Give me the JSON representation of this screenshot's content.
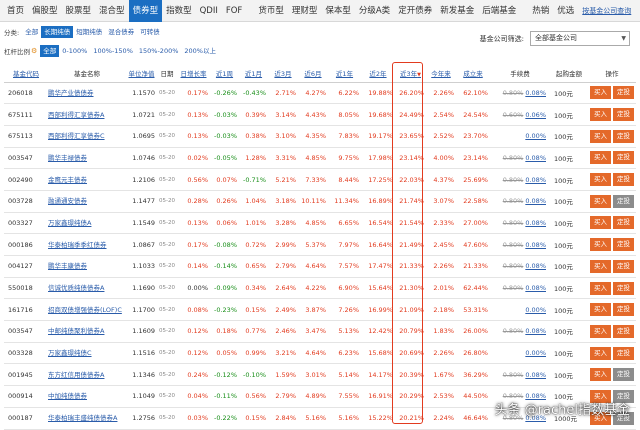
{
  "nav": {
    "items": [
      "首页",
      "偏股型",
      "股票型",
      "混合型",
      "债券型",
      "指数型",
      "QDII",
      "FOF",
      "货币型",
      "理财型",
      "保本型",
      "分级A类",
      "定开债券",
      "新发基金",
      "后端基金",
      "热销",
      "优选"
    ],
    "active_index": 4,
    "link": "按基金公司查询"
  },
  "category": {
    "label": "分类:",
    "options": [
      "全部",
      "长期纯债",
      "短期纯债",
      "混合债券",
      "可转债"
    ],
    "active_index": 1
  },
  "leverage": {
    "label": "杠杆比例",
    "options": [
      "全部",
      "0-100%",
      "100%-150%",
      "150%-200%",
      "200%以上"
    ],
    "active_index": 0
  },
  "company_filter": {
    "label": "基金公司筛选:",
    "selected": "全部基金公司"
  },
  "table": {
    "headers": [
      "基金代码",
      "基金名称",
      "单位净值",
      "日期",
      "日增长率",
      "近1周",
      "近1月",
      "近3月",
      "近6月",
      "近1年",
      "近2年",
      "近3年",
      "今年来",
      "成立来",
      "手续费",
      "起购金额",
      "操作"
    ],
    "buy_label": "买入",
    "plan_label": "定投",
    "rows": [
      {
        "code": "206018",
        "name": "鹏华产业债债券",
        "nav": "1.1570",
        "date": "05-20",
        "d1": "0.17%",
        "w1": "-0.26%",
        "m1": "-0.43%",
        "m3": "2.71%",
        "m6": "4.27%",
        "y1": "6.22%",
        "y2": "19.88%",
        "y3": "26.20%",
        "ytd": "2.26%",
        "since": "62.10%",
        "fee_old": "0.80%",
        "fee_new": "0.08%",
        "min": "100元",
        "plan_gray": false
      },
      {
        "code": "675111",
        "name": "西部利得汇享债券A",
        "nav": "1.0721",
        "date": "05-20",
        "d1": "0.13%",
        "w1": "-0.03%",
        "m1": "0.39%",
        "m3": "3.14%",
        "m6": "4.43%",
        "y1": "8.05%",
        "y2": "19.68%",
        "y3": "24.49%",
        "ytd": "2.54%",
        "since": "24.54%",
        "fee_old": "0.60%",
        "fee_new": "0.06%",
        "min": "100元",
        "plan_gray": false
      },
      {
        "code": "675113",
        "name": "西部利得汇享债券C",
        "nav": "1.0695",
        "date": "05-20",
        "d1": "0.13%",
        "w1": "-0.03%",
        "m1": "0.38%",
        "m3": "3.10%",
        "m6": "4.35%",
        "y1": "7.83%",
        "y2": "19.17%",
        "y3": "23.65%",
        "ytd": "2.52%",
        "since": "23.70%",
        "fee_old": "",
        "fee_new": "0.00%",
        "min": "100元",
        "plan_gray": false
      },
      {
        "code": "003547",
        "name": "鹏华丰禄债券",
        "nav": "1.0746",
        "date": "05-20",
        "d1": "0.02%",
        "w1": "-0.05%",
        "m1": "1.28%",
        "m3": "3.31%",
        "m6": "4.85%",
        "y1": "9.75%",
        "y2": "17.98%",
        "y3": "23.14%",
        "ytd": "4.00%",
        "since": "23.14%",
        "fee_old": "0.80%",
        "fee_new": "0.08%",
        "min": "100元",
        "plan_gray": false
      },
      {
        "code": "002490",
        "name": "金鹰元丰债券",
        "nav": "1.2106",
        "date": "05-20",
        "d1": "0.56%",
        "w1": "0.07%",
        "m1": "-0.71%",
        "m3": "5.21%",
        "m6": "7.33%",
        "y1": "8.44%",
        "y2": "17.25%",
        "y3": "22.03%",
        "ytd": "4.37%",
        "since": "25.69%",
        "fee_old": "0.80%",
        "fee_new": "0.08%",
        "min": "100元",
        "plan_gray": false
      },
      {
        "code": "003728",
        "name": "融通通安债券",
        "nav": "1.1477",
        "date": "05-20",
        "d1": "0.28%",
        "w1": "0.26%",
        "m1": "1.04%",
        "m3": "3.18%",
        "m6": "10.11%",
        "y1": "11.34%",
        "y2": "16.89%",
        "y3": "21.74%",
        "ytd": "3.07%",
        "since": "22.58%",
        "fee_old": "0.80%",
        "fee_new": "0.08%",
        "min": "100元",
        "plan_gray": true
      },
      {
        "code": "003327",
        "name": "万家鑫璟纯债A",
        "nav": "1.1549",
        "date": "05-20",
        "d1": "0.13%",
        "w1": "0.06%",
        "m1": "1.01%",
        "m3": "3.28%",
        "m6": "4.85%",
        "y1": "6.65%",
        "y2": "16.54%",
        "y3": "21.54%",
        "ytd": "2.33%",
        "since": "27.00%",
        "fee_old": "0.80%",
        "fee_new": "0.08%",
        "min": "100元",
        "plan_gray": false
      },
      {
        "code": "000186",
        "name": "华泰柏瑞季季红债券",
        "nav": "1.0867",
        "date": "05-20",
        "d1": "0.17%",
        "w1": "-0.08%",
        "m1": "0.72%",
        "m3": "2.99%",
        "m6": "5.37%",
        "y1": "7.97%",
        "y2": "16.64%",
        "y3": "21.49%",
        "ytd": "2.45%",
        "since": "47.60%",
        "fee_old": "0.80%",
        "fee_new": "0.08%",
        "min": "100元",
        "plan_gray": false
      },
      {
        "code": "004127",
        "name": "鹏华丰康债券",
        "nav": "1.1033",
        "date": "05-20",
        "d1": "0.14%",
        "w1": "-0.14%",
        "m1": "0.65%",
        "m3": "2.79%",
        "m6": "4.64%",
        "y1": "7.57%",
        "y2": "17.47%",
        "y3": "21.33%",
        "ytd": "2.26%",
        "since": "21.33%",
        "fee_old": "0.80%",
        "fee_new": "0.08%",
        "min": "100元",
        "plan_gray": false
      },
      {
        "code": "550018",
        "name": "信诚优质纯债债券A",
        "nav": "1.1690",
        "date": "05-20",
        "d1": "0.00%",
        "w1": "-0.09%",
        "m1": "0.34%",
        "m3": "2.64%",
        "m6": "4.22%",
        "y1": "6.90%",
        "y2": "15.64%",
        "y3": "21.30%",
        "ytd": "2.01%",
        "since": "62.44%",
        "fee_old": "0.80%",
        "fee_new": "0.08%",
        "min": "100元",
        "plan_gray": false
      },
      {
        "code": "161716",
        "name": "招商双债增强债券(LOF)C",
        "nav": "1.1700",
        "date": "05-20",
        "d1": "0.08%",
        "w1": "-0.23%",
        "m1": "0.15%",
        "m3": "2.49%",
        "m6": "3.87%",
        "y1": "7.26%",
        "y2": "16.99%",
        "y3": "21.09%",
        "ytd": "2.18%",
        "since": "53.31%",
        "fee_old": "",
        "fee_new": "0.00%",
        "min": "100元",
        "plan_gray": false
      },
      {
        "code": "003547",
        "name": "中邮纯债聚利债券A",
        "nav": "1.1609",
        "date": "05-20",
        "d1": "0.12%",
        "w1": "0.18%",
        "m1": "0.77%",
        "m3": "2.46%",
        "m6": "3.47%",
        "y1": "5.13%",
        "y2": "12.42%",
        "y3": "20.79%",
        "ytd": "1.83%",
        "since": "26.00%",
        "fee_old": "0.80%",
        "fee_new": "0.08%",
        "min": "100元",
        "plan_gray": false
      },
      {
        "code": "003328",
        "name": "万家鑫璟纯债C",
        "nav": "1.1516",
        "date": "05-20",
        "d1": "0.12%",
        "w1": "0.05%",
        "m1": "0.99%",
        "m3": "3.21%",
        "m6": "4.64%",
        "y1": "6.23%",
        "y2": "15.68%",
        "y3": "20.69%",
        "ytd": "2.26%",
        "since": "26.80%",
        "fee_old": "",
        "fee_new": "0.00%",
        "min": "100元",
        "plan_gray": false
      },
      {
        "code": "001945",
        "name": "东方红信用债债券A",
        "nav": "1.1346",
        "date": "05-20",
        "d1": "0.24%",
        "w1": "-0.12%",
        "m1": "-0.10%",
        "m3": "1.59%",
        "m6": "3.01%",
        "y1": "5.14%",
        "y2": "14.17%",
        "y3": "20.39%",
        "ytd": "1.67%",
        "since": "36.29%",
        "fee_old": "0.80%",
        "fee_new": "0.08%",
        "min": "100元",
        "plan_gray": true
      },
      {
        "code": "000914",
        "name": "中加纯债债券",
        "nav": "1.1049",
        "date": "05-20",
        "d1": "0.04%",
        "w1": "-0.11%",
        "m1": "0.56%",
        "m3": "2.79%",
        "m6": "4.89%",
        "y1": "7.55%",
        "y2": "16.91%",
        "y3": "20.29%",
        "ytd": "2.53%",
        "since": "44.50%",
        "fee_old": "0.80%",
        "fee_new": "0.08%",
        "min": "100元",
        "plan_gray": true
      },
      {
        "code": "000187",
        "name": "华泰柏瑞丰盛纯债债券A",
        "nav": "1.2756",
        "date": "05-20",
        "d1": "0.03%",
        "w1": "-0.22%",
        "m1": "0.15%",
        "m3": "2.84%",
        "m6": "5.16%",
        "y1": "5.16%",
        "y2": "15.22%",
        "y3": "20.21%",
        "ytd": "2.24%",
        "since": "46.64%",
        "fee_old": "0.80%",
        "fee_new": "0.08%",
        "min": "1000元",
        "plan_gray": true
      }
    ]
  },
  "watermark": "头条 @rachel指数基金"
}
